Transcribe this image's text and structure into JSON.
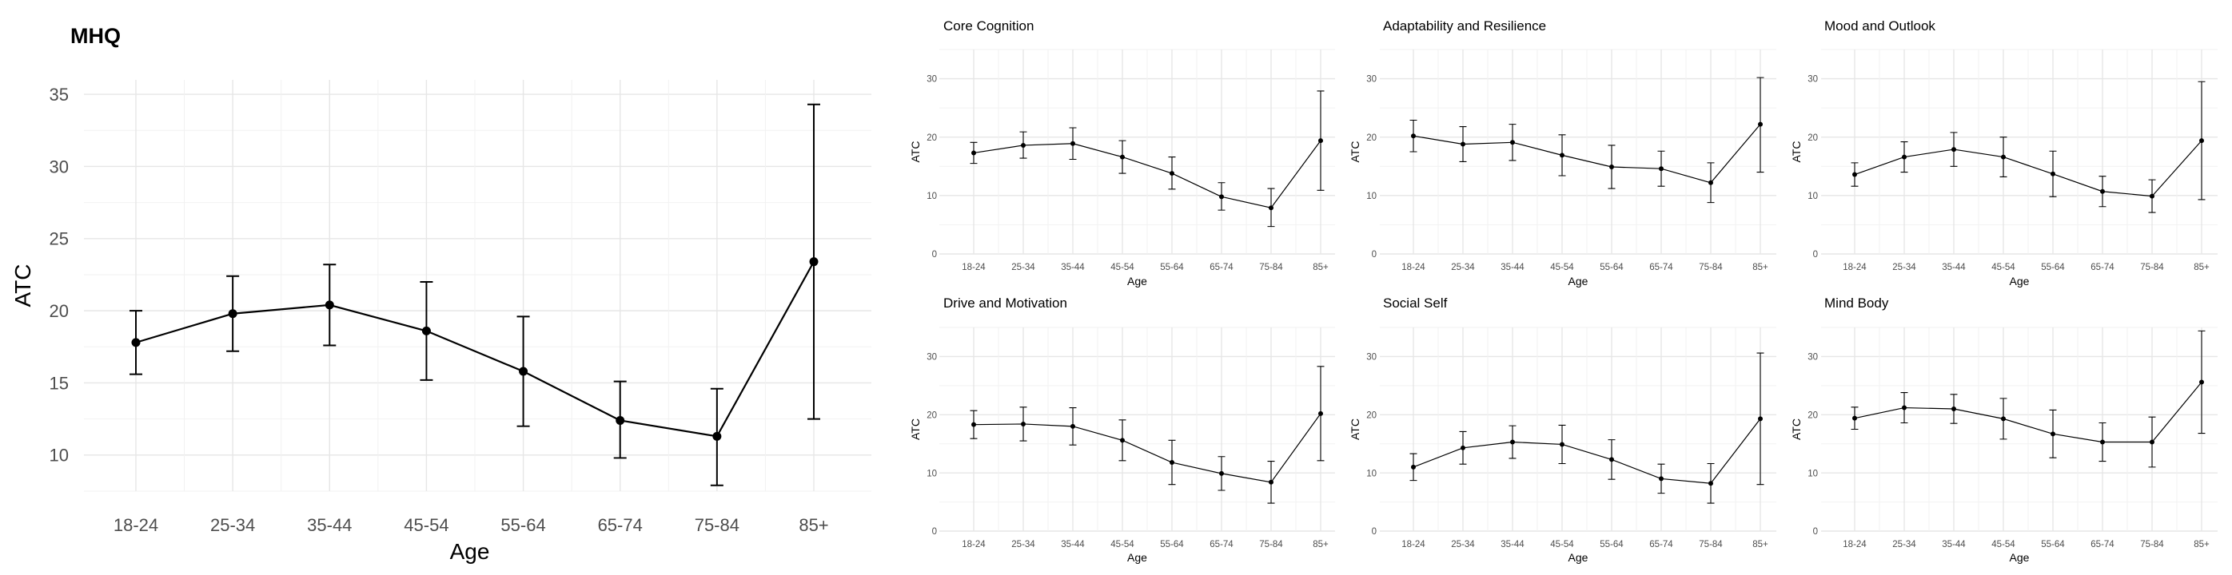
{
  "categories": [
    "18-24",
    "25-34",
    "35-44",
    "45-54",
    "55-64",
    "65-74",
    "75-84",
    "85+"
  ],
  "chart_data": [
    {
      "type": "line",
      "title": "MHQ",
      "xlabel": "Age",
      "ylabel": "ATC",
      "ylim": [
        7.5,
        36
      ],
      "yticks": [
        10,
        15,
        20,
        25,
        30,
        35
      ],
      "grid": true,
      "series": [
        {
          "values": [
            17.8,
            19.8,
            20.4,
            18.6,
            15.8,
            12.4,
            11.3,
            23.4
          ],
          "lower": [
            15.6,
            17.2,
            17.6,
            15.2,
            12.0,
            9.8,
            7.9,
            12.5
          ],
          "upper": [
            20.0,
            22.4,
            23.2,
            22.0,
            19.6,
            15.1,
            14.6,
            34.3
          ]
        }
      ]
    },
    {
      "type": "line",
      "title": "Core Cognition",
      "xlabel": "Age",
      "ylabel": "ATC",
      "ylim": [
        0,
        35
      ],
      "yticks": [
        0,
        10,
        20,
        30
      ],
      "grid": true,
      "series": [
        {
          "values": [
            17.3,
            18.6,
            18.9,
            16.6,
            13.8,
            9.8,
            7.9,
            19.4
          ],
          "lower": [
            15.5,
            16.4,
            16.2,
            13.8,
            11.1,
            7.5,
            4.7,
            10.9
          ],
          "upper": [
            19.1,
            20.9,
            21.6,
            19.4,
            16.6,
            12.2,
            11.2,
            27.9
          ]
        }
      ]
    },
    {
      "type": "line",
      "title": "Adaptability and Resilience",
      "xlabel": "Age",
      "ylabel": "ATC",
      "ylim": [
        0,
        35
      ],
      "yticks": [
        0,
        10,
        20,
        30
      ],
      "grid": true,
      "series": [
        {
          "values": [
            20.2,
            18.8,
            19.1,
            16.9,
            14.9,
            14.6,
            12.2,
            22.2
          ],
          "lower": [
            17.5,
            15.8,
            16.0,
            13.4,
            11.2,
            11.6,
            8.8,
            14.0
          ],
          "upper": [
            22.9,
            21.8,
            22.2,
            20.4,
            18.6,
            17.6,
            15.6,
            30.2
          ]
        }
      ]
    },
    {
      "type": "line",
      "title": "Mood and Outlook",
      "xlabel": "Age",
      "ylabel": "ATC",
      "ylim": [
        0,
        35
      ],
      "yticks": [
        0,
        10,
        20,
        30
      ],
      "grid": true,
      "series": [
        {
          "values": [
            13.6,
            16.6,
            17.9,
            16.6,
            13.7,
            10.7,
            9.9,
            19.4
          ],
          "lower": [
            11.6,
            14.0,
            15.0,
            13.2,
            9.8,
            8.1,
            7.1,
            9.3
          ],
          "upper": [
            15.6,
            19.2,
            20.8,
            20.0,
            17.6,
            13.3,
            12.7,
            29.5
          ]
        }
      ]
    },
    {
      "type": "line",
      "title": "Drive and Motivation",
      "xlabel": "Age",
      "ylabel": "ATC",
      "ylim": [
        0,
        35
      ],
      "yticks": [
        0,
        10,
        20,
        30
      ],
      "grid": true,
      "series": [
        {
          "values": [
            18.3,
            18.4,
            18.0,
            15.6,
            11.8,
            9.9,
            8.4,
            20.2
          ],
          "lower": [
            15.9,
            15.5,
            14.8,
            12.1,
            8.0,
            7.0,
            4.8,
            12.1
          ],
          "upper": [
            20.7,
            21.3,
            21.2,
            19.1,
            15.6,
            12.8,
            12.0,
            28.3
          ]
        }
      ]
    },
    {
      "type": "line",
      "title": "Social Self",
      "xlabel": "Age",
      "ylabel": "ATC",
      "ylim": [
        0,
        35
      ],
      "yticks": [
        0,
        10,
        20,
        30
      ],
      "grid": true,
      "series": [
        {
          "values": [
            11.0,
            14.3,
            15.3,
            14.9,
            12.3,
            9.0,
            8.2,
            19.3
          ],
          "lower": [
            8.7,
            11.5,
            12.5,
            11.6,
            8.9,
            6.5,
            4.8,
            8.0
          ],
          "upper": [
            13.3,
            17.1,
            18.1,
            18.2,
            15.7,
            11.5,
            11.6,
            30.6
          ]
        }
      ]
    },
    {
      "type": "line",
      "title": "Mind Body",
      "xlabel": "Age",
      "ylabel": "ATC",
      "ylim": [
        0,
        35
      ],
      "yticks": [
        0,
        10,
        20,
        30
      ],
      "grid": true,
      "series": [
        {
          "values": [
            19.4,
            21.2,
            21.0,
            19.3,
            16.7,
            15.3,
            15.3,
            25.6
          ],
          "lower": [
            17.5,
            18.6,
            18.5,
            15.8,
            12.6,
            12.0,
            11.0,
            16.8
          ],
          "upper": [
            21.3,
            23.8,
            23.5,
            22.8,
            20.8,
            18.6,
            19.6,
            34.4
          ]
        }
      ]
    }
  ]
}
